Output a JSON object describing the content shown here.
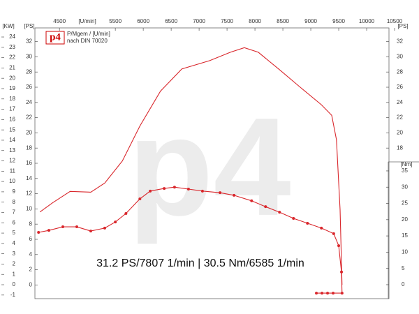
{
  "chart_data": {
    "type": "line",
    "logo": "p4",
    "legend_lines": [
      "P/Mgem / [U/min]",
      "nach DIN 70020"
    ],
    "annotation": "31.2 PS/7807 1/min | 30.5 Nm/6585 1/min",
    "watermark": "p4",
    "xlabel": "[U/min]",
    "ylabel": "[PS]",
    "kw_label": "[KW]",
    "y2label": "[Nm]",
    "xlim": [
      4060,
      10400
    ],
    "xticks": [
      4500,
      5500,
      6000,
      6500,
      7000,
      7500,
      8000,
      8500,
      9000,
      9500,
      10000,
      10500
    ],
    "ylim": [
      -1.8,
      33.8
    ],
    "yticks": [
      0,
      2,
      4,
      6,
      8,
      10,
      12,
      14,
      16,
      18,
      20,
      22,
      24,
      26,
      28,
      30,
      32
    ],
    "kw_ylim": [
      -1.35,
      24.88
    ],
    "kw_yticks": [
      -1,
      0,
      1,
      2,
      3,
      4,
      5,
      6,
      7,
      8,
      9,
      10,
      11,
      12,
      13,
      14,
      15,
      16,
      17,
      18,
      19,
      20,
      21,
      22,
      23,
      24
    ],
    "y2lim": [
      -4.3,
      79
    ],
    "y2ticks": [
      0,
      5,
      10,
      15,
      20,
      25,
      30,
      35
    ],
    "series": [
      {
        "color": "#d9262b",
        "markers": false,
        "x": [
          4150,
          4375,
          4690,
          5060,
          5310,
          5625,
          5940,
          6310,
          6690,
          7190,
          7560,
          7810,
          8060,
          8440,
          8810,
          9190,
          9375,
          9460,
          9525,
          9560
        ],
        "values": [
          9.6,
          10.8,
          12.3,
          12.2,
          13.4,
          16.3,
          20.9,
          25.5,
          28.4,
          29.5,
          30.6,
          31.2,
          30.6,
          28.3,
          26.0,
          23.7,
          22.3,
          19.1,
          9.9,
          0
        ]
      },
      {
        "color": "#d9262b",
        "markers": true,
        "axis": "y2",
        "x": [
          4125,
          4310,
          4560,
          4810,
          5060,
          5310,
          5500,
          5690,
          5940,
          6125,
          6375,
          6560,
          6810,
          7060,
          7375,
          7625,
          7940,
          8190,
          8440,
          8690,
          8940,
          9190,
          9410,
          9500,
          9550,
          9560,
          9400,
          9300,
          9200,
          9100
        ],
        "values": [
          16.1,
          16.7,
          17.8,
          17.8,
          16.5,
          17.4,
          19.3,
          21.9,
          26.4,
          28.8,
          29.6,
          30.0,
          29.4,
          28.8,
          28.3,
          27.5,
          25.8,
          24.0,
          22.3,
          20.4,
          18.9,
          17.4,
          15.7,
          12.0,
          3.9,
          -2.6,
          -2.6,
          -2.6,
          -2.6,
          -2.6
        ]
      }
    ]
  }
}
